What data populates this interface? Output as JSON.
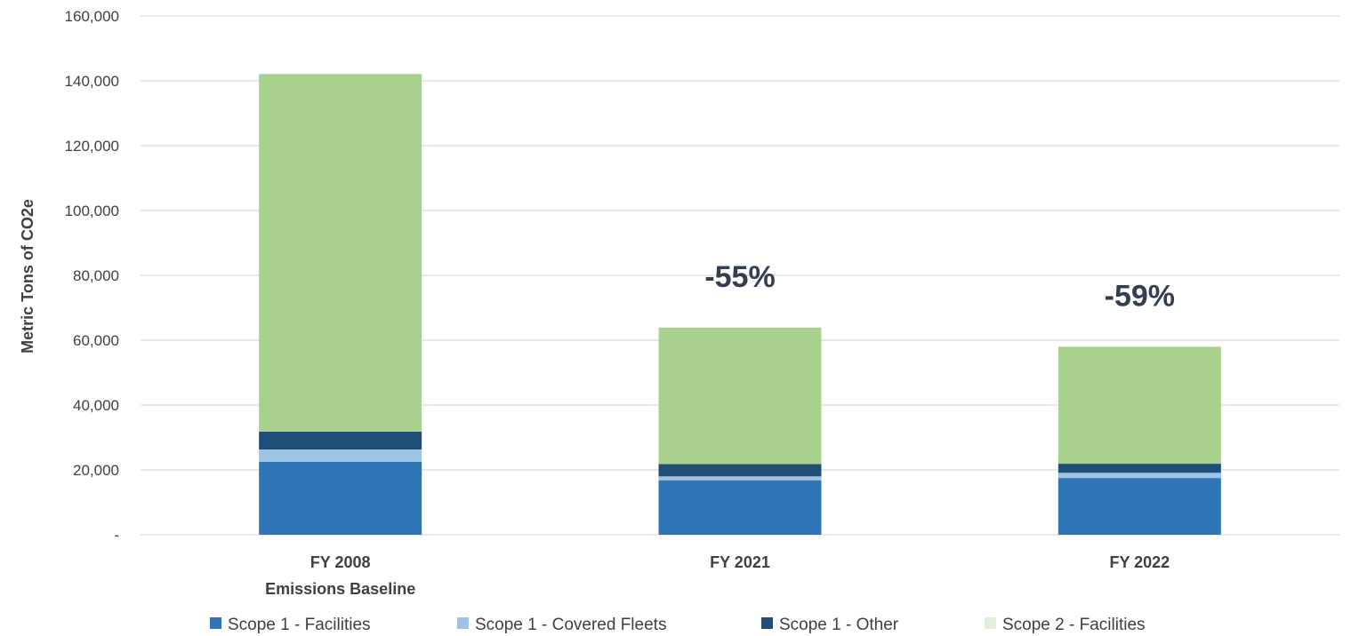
{
  "chart_data": {
    "type": "bar",
    "stacked": true,
    "categories": [
      "FY 2008\nEmissions Baseline",
      "FY 2021",
      "FY 2022"
    ],
    "series": [
      {
        "name": "Scope 1 - Facilities",
        "color": "#2e75b6",
        "values": [
          22500,
          16800,
          17500
        ]
      },
      {
        "name": "Scope 1 - Covered Fleets",
        "color": "#9dc3e6",
        "values": [
          3800,
          1200,
          1600
        ]
      },
      {
        "name": "Scope 1 - Other",
        "color": "#1f4e79",
        "values": [
          5500,
          3800,
          2800
        ]
      },
      {
        "name": "Scope 2 - Facilities",
        "color": "#a9d18e",
        "values": [
          110300,
          42100,
          36100
        ]
      }
    ],
    "annotations": [
      {
        "category": "FY 2021",
        "text": "-55%"
      },
      {
        "category": "FY 2022",
        "text": "-59%"
      }
    ],
    "ylabel": "Metric Tons of CO2e",
    "xlabel": "",
    "ylim": [
      0,
      160000
    ],
    "yticks": [
      0,
      20000,
      40000,
      60000,
      80000,
      100000,
      120000,
      140000,
      160000
    ],
    "ytick_labels": [
      "-",
      "20,000",
      "40,000",
      "60,000",
      "80,000",
      "100,000",
      "120,000",
      "140,000",
      "160,000"
    ],
    "grid": true,
    "legend": "bottom",
    "legend_swatch_colors": [
      "#2e75b6",
      "#9dc3e6",
      "#1f4e79",
      "#e2efda"
    ]
  }
}
